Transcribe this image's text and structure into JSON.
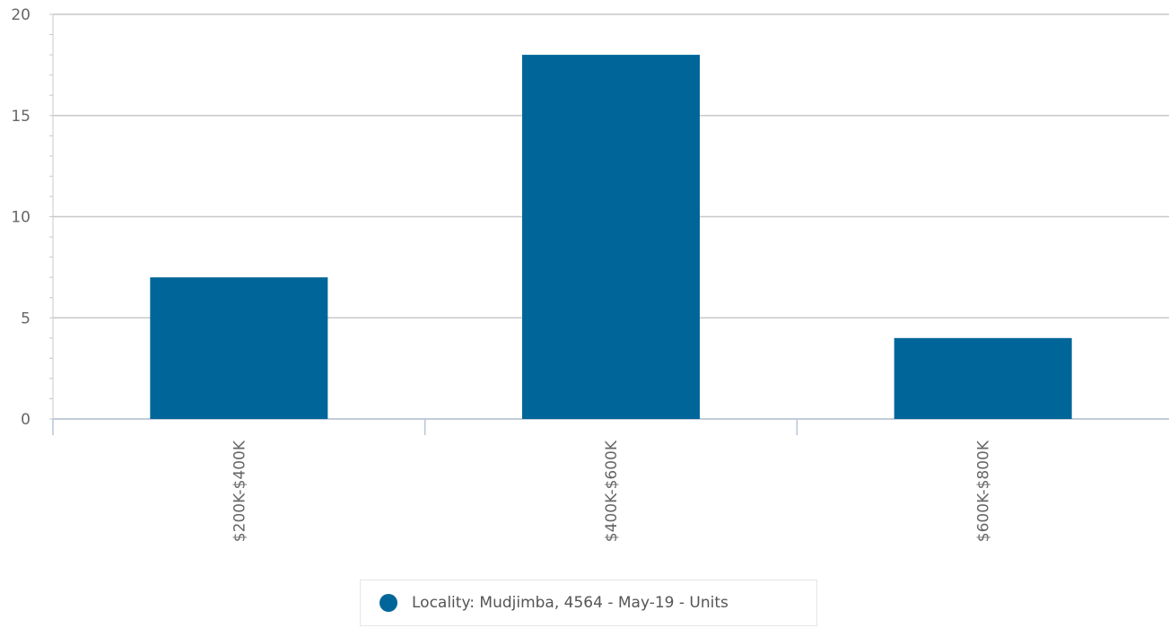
{
  "chart_data": {
    "type": "bar",
    "categories": [
      "$200K-$400K",
      "$400K-$600K",
      "$600K-$800K"
    ],
    "series": [
      {
        "name": "Locality: Mudjimba, 4564 - May-19 - Units",
        "values": [
          7,
          18,
          4
        ],
        "color": "#006699"
      }
    ],
    "yticks": [
      0,
      5,
      10,
      15,
      20
    ],
    "ylim": [
      0,
      20
    ],
    "grid": true,
    "legend_position": "bottom-center"
  }
}
